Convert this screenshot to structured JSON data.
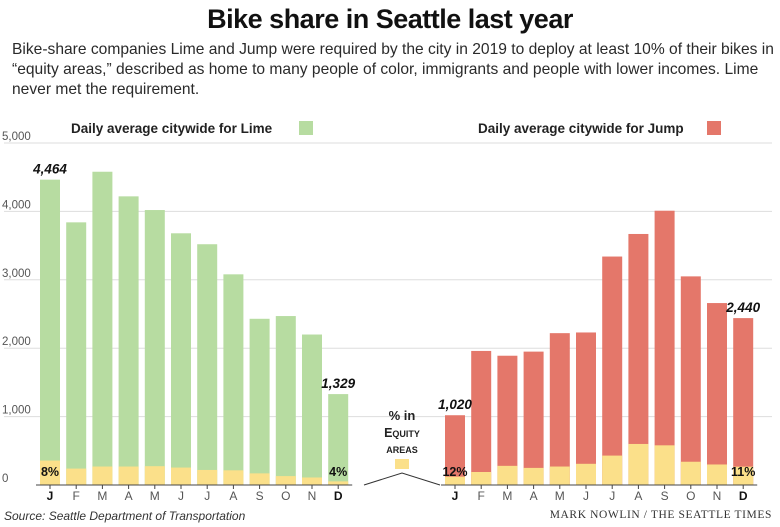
{
  "title": "Bike share in Seattle last year",
  "subtitle": "Bike-share companies Lime and Jump were required by the city in 2019 to deploy at least 10% of their bikes in “equity areas,” described as home to many people of color, immigrants and people with lower incomes. Lime never met the requirement.",
  "source": "Source: Seattle Department of Transportation",
  "credit": "MARK NOWLIN / THE SEATTLE TIMES",
  "colors": {
    "lime": "#b7dca1",
    "jump": "#e4776a",
    "equity": "#fbe08a",
    "axis": "#555555",
    "grid": "#dddddd"
  },
  "legend_key": {
    "line1": "% in",
    "line2": "Equity",
    "line3": "areas"
  },
  "chart_data": [
    {
      "type": "bar",
      "legend": "Daily average citywide for Lime",
      "categories": [
        "J",
        "F",
        "M",
        "A",
        "M",
        "J",
        "J",
        "A",
        "S",
        "O",
        "N",
        "D"
      ],
      "bold_categories": [
        "J",
        "D"
      ],
      "total": [
        4464,
        3840,
        4580,
        4220,
        4020,
        3680,
        3520,
        3080,
        2430,
        2470,
        2200,
        1329
      ],
      "equity_area": [
        357,
        240,
        270,
        270,
        275,
        255,
        220,
        215,
        170,
        130,
        110,
        53
      ],
      "value_labels": {
        "0": "4,464",
        "11": "1,329"
      },
      "pct_labels": {
        "0": "8%",
        "11": "4%"
      },
      "ylim": [
        0,
        5000
      ],
      "yticks": [
        "0",
        "1,000",
        "2,000",
        "3,000",
        "4,000",
        "5,000"
      ],
      "grid": true
    },
    {
      "type": "bar",
      "legend": "Daily average citywide for Jump",
      "categories": [
        "J",
        "F",
        "M",
        "A",
        "M",
        "J",
        "J",
        "A",
        "S",
        "O",
        "N",
        "D"
      ],
      "bold_categories": [
        "J",
        "D"
      ],
      "total": [
        1020,
        1960,
        1890,
        1950,
        2220,
        2230,
        3340,
        3670,
        4010,
        3050,
        2660,
        2440
      ],
      "equity_area": [
        122,
        190,
        280,
        250,
        270,
        310,
        430,
        600,
        580,
        340,
        300,
        268
      ],
      "value_labels": {
        "0": "1,020",
        "11": "2,440"
      },
      "pct_labels": {
        "0": "12%",
        "11": "11%"
      },
      "ylim": [
        0,
        5000
      ],
      "grid": true
    }
  ]
}
